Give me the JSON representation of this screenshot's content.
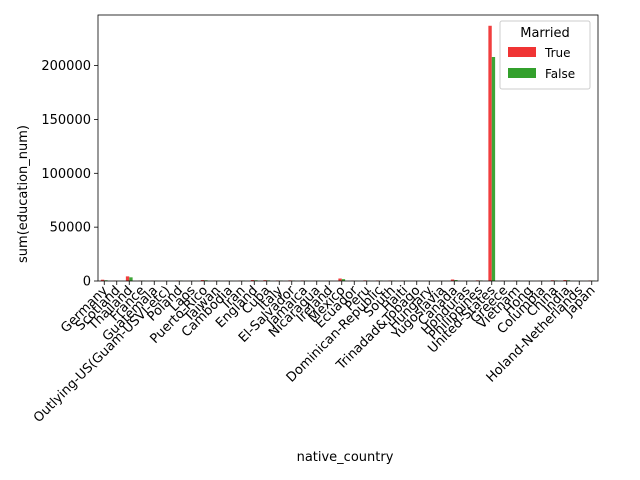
{
  "chart_data": {
    "type": "bar",
    "xlabel": "native_country",
    "ylabel": "sum(education_num)",
    "ylim": [
      0,
      247000
    ],
    "yticks": [
      0,
      50000,
      100000,
      150000,
      200000
    ],
    "legend": {
      "title": "Married",
      "placement": "top-right"
    },
    "grid": false,
    "categories": [
      "Germany",
      "Scotland",
      "Thailand",
      "France",
      "Guatemala",
      "Outlying-US(Guam-USVI-etc)",
      "Poland",
      "Laos",
      "Puerto-Rico",
      "Taiwan",
      "Cambodia",
      "Iran",
      "England",
      "Cuba",
      "Italy",
      "El-Salvador",
      "Jamaica",
      "Nicaragua",
      "Ireland",
      "Mexico",
      "Ecuador",
      "Peru",
      "Dominican-Republic",
      "South",
      "Haiti",
      "Trinadad&Tobago",
      "Hungary",
      "Yugoslavia",
      "Canada",
      "Honduras",
      "Philippines",
      "United-States",
      "Greece",
      "Vietnam",
      "Hong",
      "Columbia",
      "China",
      "India",
      "Holand-Netherlands",
      "Japan"
    ],
    "series": [
      {
        "name": "True",
        "color": "#f03434",
        "values": [
          1200,
          300,
          4300,
          350,
          250,
          150,
          450,
          200,
          900,
          350,
          250,
          400,
          900,
          800,
          500,
          600,
          500,
          300,
          250,
          2300,
          250,
          600,
          500,
          500,
          300,
          200,
          150,
          200,
          1400,
          200,
          600,
          237000,
          250,
          400,
          150,
          250,
          700,
          900,
          0,
          500
        ]
      },
      {
        "name": "False",
        "color": "#33a02c",
        "values": [
          700,
          100,
          3400,
          250,
          200,
          100,
          350,
          150,
          700,
          250,
          150,
          300,
          700,
          600,
          400,
          400,
          300,
          200,
          150,
          1700,
          150,
          300,
          400,
          300,
          200,
          100,
          100,
          100,
          900,
          100,
          500,
          208000,
          150,
          300,
          100,
          150,
          500,
          700,
          100,
          300
        ]
      }
    ]
  }
}
